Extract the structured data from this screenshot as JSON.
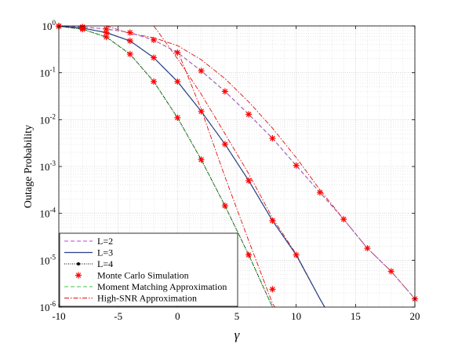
{
  "chart_data": {
    "type": "line",
    "title": "",
    "xlabel": "γ",
    "ylabel": "Outage Probability",
    "xlim": [
      -10,
      20
    ],
    "ylim": [
      1e-06,
      1
    ],
    "yscale": "log",
    "grid": true,
    "minor_grid": true,
    "legend_position": "bottom-left",
    "x_ticks": [
      "-10",
      "-5",
      "0",
      "5",
      "10",
      "15",
      "20"
    ],
    "y_ticks": [
      {
        "base": "10",
        "exp": "0"
      },
      {
        "base": "10",
        "exp": "-1"
      },
      {
        "base": "10",
        "exp": "-2"
      },
      {
        "base": "10",
        "exp": "-3"
      },
      {
        "base": "10",
        "exp": "-4"
      },
      {
        "base": "10",
        "exp": "-5"
      },
      {
        "base": "10",
        "exp": "-6"
      }
    ],
    "colors": {
      "L2": "#c040e0",
      "L3": "#2c3f8c",
      "L4": "#000000",
      "monte_carlo": "#ff0000",
      "moment_matching": "#3cc43c",
      "high_snr": "#e01010"
    },
    "series": [
      {
        "name": "L=2",
        "style": "dashed",
        "x": [
          -10,
          -8,
          -6,
          -4,
          -2,
          0,
          2,
          4,
          6,
          8,
          10,
          12,
          14,
          16,
          18,
          20
        ],
        "y": [
          0.995,
          0.95,
          0.86,
          0.72,
          0.5,
          0.27,
          0.11,
          0.04,
          0.013,
          0.004,
          0.00105,
          0.00028,
          7.5e-05,
          1.8e-05,
          5.8e-06,
          1.5e-06
        ]
      },
      {
        "name": "L=3",
        "style": "solid",
        "x": [
          -10,
          -8,
          -6,
          -4,
          -2,
          0,
          2,
          4,
          6,
          8,
          10,
          12,
          12.4
        ],
        "y": [
          0.99,
          0.9,
          0.72,
          0.48,
          0.21,
          0.065,
          0.015,
          0.003,
          0.0005,
          7e-05,
          1.3e-05,
          1.5e-06,
          1e-06
        ]
      },
      {
        "name": "L=4",
        "style": "dotted",
        "x": [
          -10,
          -8,
          -6,
          -4,
          -2,
          0,
          2,
          4,
          6,
          8
        ],
        "y": [
          0.985,
          0.85,
          0.58,
          0.25,
          0.065,
          0.011,
          0.0014,
          0.000145,
          1.3e-05,
          1e-06
        ]
      },
      {
        "name": "Monte Carlo Simulation",
        "style": "markers",
        "points": [
          [
            -10,
            0.995
          ],
          [
            -8,
            0.95
          ],
          [
            -6,
            0.86
          ],
          [
            -4,
            0.72
          ],
          [
            -2,
            0.5
          ],
          [
            0,
            0.27
          ],
          [
            2,
            0.11
          ],
          [
            4,
            0.04
          ],
          [
            6,
            0.013
          ],
          [
            8,
            0.004
          ],
          [
            10,
            0.00105
          ],
          [
            12,
            0.00028
          ],
          [
            14,
            7.5e-05
          ],
          [
            16,
            1.8e-05
          ],
          [
            18,
            5.8e-06
          ],
          [
            20,
            1.5e-06
          ],
          [
            -10,
            0.99
          ],
          [
            -8,
            0.9
          ],
          [
            -6,
            0.72
          ],
          [
            -4,
            0.48
          ],
          [
            -2,
            0.21
          ],
          [
            0,
            0.065
          ],
          [
            2,
            0.015
          ],
          [
            4,
            0.003
          ],
          [
            6,
            0.0005
          ],
          [
            8,
            7e-05
          ],
          [
            10,
            1.3e-05
          ],
          [
            -10,
            0.985
          ],
          [
            -8,
            0.85
          ],
          [
            -6,
            0.58
          ],
          [
            -4,
            0.25
          ],
          [
            -2,
            0.065
          ],
          [
            0,
            0.011
          ],
          [
            2,
            0.0014
          ],
          [
            4,
            0.000145
          ],
          [
            6,
            1.3e-05
          ],
          [
            8,
            2.4e-06
          ]
        ]
      },
      {
        "name": "Moment Matching Approximation",
        "style": "dashed",
        "curves": [
          {
            "x": [
              -10,
              -8,
              -6,
              -4,
              -2,
              0,
              2,
              4,
              6,
              8,
              10,
              12,
              14,
              16,
              18,
              20
            ],
            "y": [
              0.995,
              0.95,
              0.86,
              0.72,
              0.5,
              0.27,
              0.11,
              0.04,
              0.013,
              0.004,
              0.00105,
              0.00028,
              7.5e-05,
              1.8e-05,
              5.8e-06,
              1.5e-06
            ]
          },
          {
            "x": [
              -10,
              -8,
              -6,
              -4,
              -2,
              0,
              2,
              4,
              6,
              8,
              10,
              12,
              12.4
            ],
            "y": [
              0.99,
              0.9,
              0.72,
              0.48,
              0.21,
              0.065,
              0.015,
              0.003,
              0.0005,
              7e-05,
              1.3e-05,
              1.5e-06,
              1e-06
            ]
          },
          {
            "x": [
              -10,
              -8,
              -6,
              -4,
              -2,
              0,
              2,
              4,
              6,
              8
            ],
            "y": [
              0.985,
              0.85,
              0.58,
              0.25,
              0.065,
              0.011,
              0.0014,
              0.000145,
              1.3e-05,
              1e-06
            ]
          }
        ]
      },
      {
        "name": "High-SNR Approximation",
        "style": "dashdot",
        "curves": [
          {
            "x": [
              -6,
              -4,
              -2,
              0,
              2,
              4,
              6,
              8,
              10,
              12,
              14,
              16,
              18,
              20
            ],
            "y": [
              1.0,
              0.69,
              0.56,
              0.38,
              0.19,
              0.075,
              0.024,
              0.0066,
              0.00155,
              0.00032,
              7.5e-05,
              1.8e-05,
              5.8e-06,
              1.5e-06
            ]
          },
          {
            "x": [
              -2,
              0,
              2,
              4,
              6,
              8,
              10,
              12,
              12.4
            ],
            "y": [
              1.0,
              0.2,
              0.035,
              0.005,
              0.0007,
              8e-05,
              1.35e-05,
              1.5e-06,
              1e-06
            ]
          },
          {
            "x": [
              0,
              2,
              4,
              6,
              8,
              8.2
            ],
            "y": [
              0.3,
              0.0165,
              0.0006,
              2.6e-05,
              1.2e-06,
              1e-06
            ]
          }
        ]
      }
    ]
  }
}
